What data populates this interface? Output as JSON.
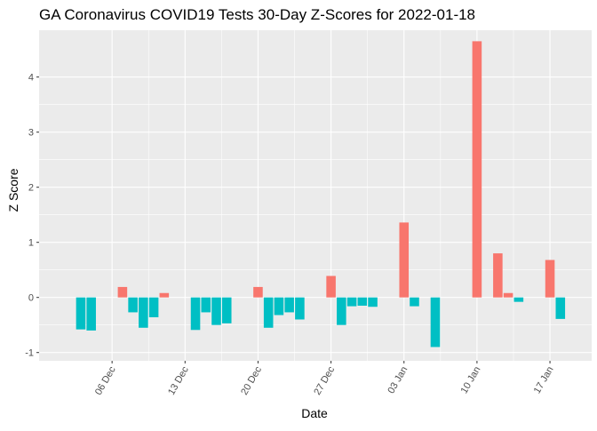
{
  "chart_data": {
    "type": "bar",
    "title": "GA Coronavirus COVID19 Tests 30-Day Z-Scores for 2022-01-18",
    "xlabel": "Date",
    "ylabel": "Z Score",
    "x_tick_labels": [
      "06 Dec",
      "13 Dec",
      "20 Dec",
      "27 Dec",
      "03 Jan",
      "10 Jan",
      "17 Jan"
    ],
    "x_tick_dates": [
      "2021-12-06",
      "2021-12-13",
      "2021-12-20",
      "2021-12-27",
      "2022-01-03",
      "2022-01-10",
      "2022-01-17"
    ],
    "xlim": [
      "2021-11-29",
      "2022-01-21"
    ],
    "y_ticks": [
      -1,
      0,
      1,
      2,
      3,
      4
    ],
    "ylim": [
      -1.15,
      4.85
    ],
    "grid": true,
    "legend": "none",
    "colors": {
      "positive": "#F8766D",
      "negative": "#00BFC4",
      "panel": "#EBEBEB",
      "grid": "#FFFFFF"
    },
    "dates": [
      "2021-12-03",
      "2021-12-04",
      "2021-12-05",
      "2021-12-06",
      "2021-12-07",
      "2021-12-08",
      "2021-12-09",
      "2021-12-10",
      "2021-12-11",
      "2021-12-12",
      "2021-12-13",
      "2021-12-14",
      "2021-12-15",
      "2021-12-16",
      "2021-12-17",
      "2021-12-18",
      "2021-12-19",
      "2021-12-20",
      "2021-12-21",
      "2021-12-22",
      "2021-12-23",
      "2021-12-24",
      "2021-12-25",
      "2021-12-26",
      "2021-12-27",
      "2021-12-28",
      "2021-12-29",
      "2021-12-30",
      "2021-12-31",
      "2022-01-01",
      "2022-01-02",
      "2022-01-03",
      "2022-01-04",
      "2022-01-05",
      "2022-01-06",
      "2022-01-07",
      "2022-01-08",
      "2022-01-09",
      "2022-01-10",
      "2022-01-11",
      "2022-01-12",
      "2022-01-13",
      "2022-01-14",
      "2022-01-15",
      "2022-01-16",
      "2022-01-17",
      "2022-01-18"
    ],
    "values": [
      -0.58,
      -0.6,
      null,
      null,
      0.19,
      -0.27,
      -0.55,
      -0.36,
      0.08,
      null,
      null,
      -0.59,
      -0.27,
      -0.5,
      -0.47,
      null,
      null,
      0.19,
      -0.55,
      -0.32,
      -0.27,
      -0.4,
      null,
      null,
      0.39,
      -0.5,
      -0.16,
      -0.15,
      -0.17,
      null,
      null,
      1.36,
      -0.16,
      null,
      -0.9,
      null,
      null,
      null,
      4.65,
      null,
      0.8,
      0.08,
      -0.08,
      null,
      null,
      0.68,
      -0.39
    ]
  }
}
